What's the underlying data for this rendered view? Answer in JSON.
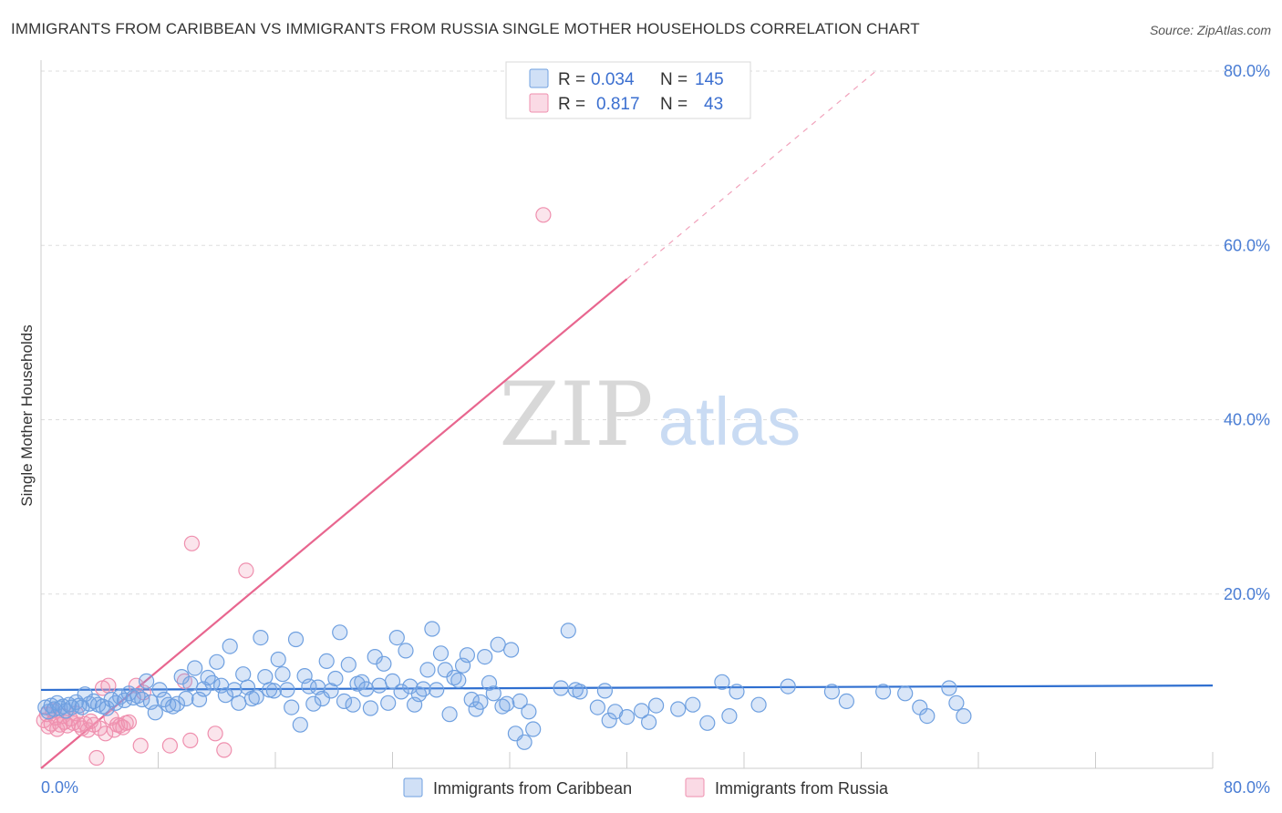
{
  "title": "IMMIGRANTS FROM CARIBBEAN VS IMMIGRANTS FROM RUSSIA SINGLE MOTHER HOUSEHOLDS CORRELATION CHART",
  "source": "Source: ZipAtlas.com",
  "watermark": {
    "zip": "ZIP",
    "atlas": "atlas"
  },
  "colors": {
    "blue": "#6fa0e0",
    "blue_fill": "rgba(120,165,230,0.28)",
    "blue_line": "#2f6fd0",
    "pink": "#ef8fae",
    "pink_fill": "rgba(240,150,180,0.25)",
    "pink_line": "#e8668f",
    "tick_label": "#4a7dd4",
    "grid": "#dddddd"
  },
  "legend": {
    "rows": [
      {
        "r_label": "R =",
        "r_value": "0.034",
        "n_label": "N =",
        "n_value": "145",
        "series": "blue"
      },
      {
        "r_label": "R =",
        "r_value": "0.817",
        "n_label": "N =",
        "n_value": "43",
        "series": "pink"
      }
    ]
  },
  "bottom_legend": [
    {
      "label": "Immigrants from Caribbean",
      "series": "blue"
    },
    {
      "label": "Immigrants from Russia",
      "series": "pink"
    }
  ],
  "chart_data": {
    "type": "scatter",
    "title": "IMMIGRANTS FROM CARIBBEAN VS IMMIGRANTS FROM RUSSIA SINGLE MOTHER HOUSEHOLDS CORRELATION CHART",
    "xlabel": "",
    "ylabel": "Single Mother Households",
    "xlim": [
      0,
      80
    ],
    "ylim": [
      0,
      80
    ],
    "x_tick_labels": [
      "0.0%",
      "80.0%"
    ],
    "y_tick_labels": [
      "20.0%",
      "40.0%",
      "60.0%",
      "80.0%"
    ],
    "y_ticks": [
      20,
      40,
      60,
      80
    ],
    "x_grid_ticks": [
      8,
      16,
      24,
      32,
      40,
      48,
      56,
      64,
      72,
      80
    ],
    "grid": true,
    "legend_position": "top-center",
    "series": [
      {
        "name": "Immigrants from Caribbean",
        "color": "blue",
        "R": 0.034,
        "N": 145,
        "trend": {
          "x": [
            0,
            80
          ],
          "y": [
            9.0,
            9.5
          ],
          "solid_until": 80
        },
        "points": [
          [
            0.3,
            7.0
          ],
          [
            0.5,
            6.5
          ],
          [
            0.7,
            7.2
          ],
          [
            0.9,
            6.8
          ],
          [
            1.1,
            7.5
          ],
          [
            1.3,
            6.9
          ],
          [
            1.5,
            7.1
          ],
          [
            1.7,
            6.6
          ],
          [
            1.9,
            7.3
          ],
          [
            2.1,
            7.0
          ],
          [
            2.4,
            7.6
          ],
          [
            2.6,
            7.2
          ],
          [
            2.8,
            7.0
          ],
          [
            3.0,
            8.5
          ],
          [
            3.3,
            7.4
          ],
          [
            3.6,
            7.7
          ],
          [
            3.9,
            7.3
          ],
          [
            4.2,
            7.1
          ],
          [
            4.5,
            6.9
          ],
          [
            4.8,
            7.9
          ],
          [
            5.1,
            7.5
          ],
          [
            5.4,
            8.2
          ],
          [
            5.7,
            7.8
          ],
          [
            6.0,
            8.6
          ],
          [
            6.3,
            8.1
          ],
          [
            6.6,
            8.3
          ],
          [
            6.9,
            7.9
          ],
          [
            7.2,
            10.0
          ],
          [
            7.5,
            7.6
          ],
          [
            7.8,
            6.4
          ],
          [
            8.1,
            9.0
          ],
          [
            8.4,
            7.9
          ],
          [
            8.7,
            7.3
          ],
          [
            9.0,
            7.1
          ],
          [
            9.3,
            7.4
          ],
          [
            9.6,
            10.5
          ],
          [
            9.9,
            8.0
          ],
          [
            10.2,
            9.7
          ],
          [
            10.5,
            11.5
          ],
          [
            10.8,
            7.9
          ],
          [
            11.1,
            9.1
          ],
          [
            11.4,
            10.4
          ],
          [
            11.7,
            9.8
          ],
          [
            12.0,
            12.2
          ],
          [
            12.3,
            9.5
          ],
          [
            12.6,
            8.4
          ],
          [
            12.9,
            14.0
          ],
          [
            13.2,
            9.0
          ],
          [
            13.5,
            7.5
          ],
          [
            13.8,
            10.8
          ],
          [
            14.1,
            9.3
          ],
          [
            14.4,
            8.0
          ],
          [
            14.7,
            8.2
          ],
          [
            15.0,
            15.0
          ],
          [
            15.3,
            10.5
          ],
          [
            15.6,
            9.0
          ],
          [
            15.9,
            8.9
          ],
          [
            16.2,
            12.5
          ],
          [
            16.5,
            10.8
          ],
          [
            16.8,
            9.0
          ],
          [
            17.1,
            7.0
          ],
          [
            17.4,
            14.8
          ],
          [
            17.7,
            5.0
          ],
          [
            18.0,
            10.6
          ],
          [
            18.3,
            9.4
          ],
          [
            18.6,
            7.4
          ],
          [
            18.9,
            9.3
          ],
          [
            19.2,
            8.0
          ],
          [
            19.5,
            12.3
          ],
          [
            19.8,
            8.9
          ],
          [
            20.1,
            10.3
          ],
          [
            20.4,
            15.6
          ],
          [
            20.7,
            7.7
          ],
          [
            21.0,
            11.9
          ],
          [
            21.3,
            7.3
          ],
          [
            21.6,
            9.7
          ],
          [
            21.9,
            9.9
          ],
          [
            22.2,
            9.1
          ],
          [
            22.5,
            6.9
          ],
          [
            22.8,
            12.8
          ],
          [
            23.1,
            9.5
          ],
          [
            23.4,
            12.0
          ],
          [
            23.7,
            7.5
          ],
          [
            24.0,
            10.0
          ],
          [
            24.3,
            15.0
          ],
          [
            24.6,
            8.8
          ],
          [
            24.9,
            13.5
          ],
          [
            25.2,
            9.4
          ],
          [
            25.5,
            7.3
          ],
          [
            25.8,
            8.5
          ],
          [
            26.1,
            9.1
          ],
          [
            26.4,
            11.3
          ],
          [
            26.7,
            16.0
          ],
          [
            27.0,
            9.0
          ],
          [
            27.3,
            13.2
          ],
          [
            27.6,
            11.3
          ],
          [
            27.9,
            6.2
          ],
          [
            28.2,
            10.4
          ],
          [
            28.5,
            10.1
          ],
          [
            28.8,
            11.8
          ],
          [
            29.1,
            13.0
          ],
          [
            29.4,
            7.9
          ],
          [
            29.7,
            6.8
          ],
          [
            30.0,
            7.6
          ],
          [
            30.3,
            12.8
          ],
          [
            30.6,
            9.8
          ],
          [
            30.9,
            8.6
          ],
          [
            31.2,
            14.2
          ],
          [
            31.5,
            7.1
          ],
          [
            31.8,
            7.4
          ],
          [
            32.1,
            13.6
          ],
          [
            32.4,
            4.0
          ],
          [
            32.7,
            7.7
          ],
          [
            33.0,
            3.0
          ],
          [
            33.3,
            6.5
          ],
          [
            33.6,
            4.5
          ],
          [
            35.5,
            9.2
          ],
          [
            36.0,
            15.8
          ],
          [
            36.5,
            9.0
          ],
          [
            36.8,
            8.8
          ],
          [
            38.0,
            7.0
          ],
          [
            38.5,
            8.9
          ],
          [
            38.8,
            5.5
          ],
          [
            39.2,
            6.5
          ],
          [
            40.0,
            5.9
          ],
          [
            41.0,
            6.6
          ],
          [
            41.5,
            5.3
          ],
          [
            42.0,
            7.2
          ],
          [
            43.5,
            6.8
          ],
          [
            44.5,
            7.3
          ],
          [
            45.5,
            5.2
          ],
          [
            46.5,
            9.9
          ],
          [
            47.0,
            6.0
          ],
          [
            47.5,
            8.8
          ],
          [
            49.0,
            7.3
          ],
          [
            51.0,
            9.4
          ],
          [
            54.0,
            8.8
          ],
          [
            55.0,
            7.7
          ],
          [
            57.5,
            8.8
          ],
          [
            59.0,
            8.6
          ],
          [
            60.0,
            7.0
          ],
          [
            60.5,
            6.0
          ],
          [
            62.0,
            9.2
          ],
          [
            62.5,
            7.5
          ],
          [
            63.0,
            6.0
          ]
        ]
      },
      {
        "name": "Immigrants from Russia",
        "color": "pink",
        "R": 0.817,
        "N": 43,
        "trend": {
          "x": [
            0,
            57
          ],
          "y": [
            0.0,
            80.0
          ],
          "solid_until": 40
        },
        "points": [
          [
            0.2,
            5.5
          ],
          [
            0.4,
            6.2
          ],
          [
            0.5,
            4.8
          ],
          [
            0.7,
            5.1
          ],
          [
            0.8,
            6.6
          ],
          [
            1.0,
            5.8
          ],
          [
            1.1,
            4.5
          ],
          [
            1.3,
            5.0
          ],
          [
            1.5,
            6.0
          ],
          [
            1.6,
            5.3
          ],
          [
            1.8,
            4.9
          ],
          [
            2.0,
            5.7
          ],
          [
            2.2,
            5.2
          ],
          [
            2.4,
            6.3
          ],
          [
            2.6,
            5.0
          ],
          [
            2.8,
            4.6
          ],
          [
            3.0,
            5.1
          ],
          [
            3.2,
            4.4
          ],
          [
            3.4,
            5.4
          ],
          [
            3.6,
            5.0
          ],
          [
            3.8,
            1.2
          ],
          [
            4.0,
            4.6
          ],
          [
            4.2,
            9.2
          ],
          [
            4.4,
            4.0
          ],
          [
            4.6,
            9.5
          ],
          [
            4.8,
            5.8
          ],
          [
            5.0,
            4.4
          ],
          [
            5.2,
            5.0
          ],
          [
            5.4,
            4.9
          ],
          [
            5.6,
            4.7
          ],
          [
            5.8,
            5.2
          ],
          [
            6.0,
            5.3
          ],
          [
            6.5,
            9.5
          ],
          [
            6.8,
            2.6
          ],
          [
            7.0,
            8.7
          ],
          [
            8.8,
            2.6
          ],
          [
            9.8,
            10.0
          ],
          [
            10.2,
            3.2
          ],
          [
            10.3,
            25.8
          ],
          [
            11.9,
            4.0
          ],
          [
            12.5,
            2.1
          ],
          [
            14.0,
            22.7
          ],
          [
            34.3,
            63.5
          ]
        ]
      }
    ]
  }
}
